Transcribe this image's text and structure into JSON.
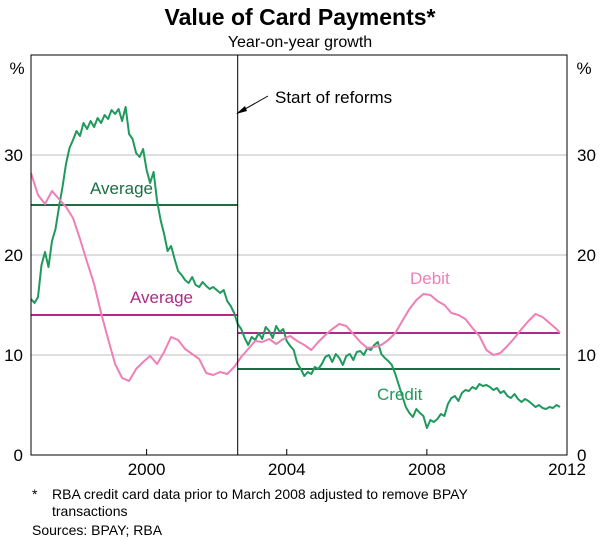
{
  "chart_data": {
    "type": "line",
    "title": "Value of Card Payments*",
    "subtitle": "Year-on-year growth",
    "y_unit_left": "%",
    "y_unit_right": "%",
    "xlim": [
      1996.7,
      2012.0
    ],
    "ylim": [
      0,
      40
    ],
    "x_ticks": [
      2000,
      2004,
      2008,
      2012
    ],
    "x_tick_labels": [
      "2000",
      "2004",
      "2008",
      "2012"
    ],
    "y_ticks": [
      0,
      10,
      20,
      30
    ],
    "y_tick_labels": [
      "0",
      "10",
      "20",
      "30"
    ],
    "grid": "horizontal",
    "colors": {
      "credit": "#1e9a5c",
      "debit": "#ef7fb7",
      "credit_average": "#1a6e44",
      "debit_average": "#b02a86",
      "grid": "#bdbdbd",
      "axis": "#000000"
    },
    "series": [
      {
        "name": "Credit",
        "color": "#1e9a5c",
        "x": [
          1996.7,
          1996.8,
          1996.9,
          1997.0,
          1997.1,
          1997.2,
          1997.3,
          1997.4,
          1997.5,
          1997.6,
          1997.7,
          1997.8,
          1997.9,
          1998.0,
          1998.1,
          1998.2,
          1998.3,
          1998.4,
          1998.5,
          1998.6,
          1998.7,
          1998.8,
          1998.9,
          1999.0,
          1999.1,
          1999.2,
          1999.3,
          1999.4,
          1999.5,
          1999.6,
          1999.7,
          1999.8,
          1999.9,
          2000.0,
          2000.1,
          2000.2,
          2000.3,
          2000.4,
          2000.5,
          2000.6,
          2000.7,
          2000.8,
          2000.9,
          2001.0,
          2001.1,
          2001.2,
          2001.3,
          2001.4,
          2001.5,
          2001.6,
          2001.7,
          2001.8,
          2001.9,
          2002.0,
          2002.1,
          2002.2,
          2002.3,
          2002.4,
          2002.5,
          2002.6,
          2002.7,
          2002.8,
          2002.9,
          2003.0,
          2003.1,
          2003.2,
          2003.3,
          2003.4,
          2003.5,
          2003.6,
          2003.7,
          2003.8,
          2003.9,
          2004.0,
          2004.1,
          2004.2,
          2004.3,
          2004.4,
          2004.5,
          2004.6,
          2004.7,
          2004.8,
          2004.9,
          2005.0,
          2005.1,
          2005.2,
          2005.3,
          2005.4,
          2005.5,
          2005.6,
          2005.7,
          2005.8,
          2005.9,
          2006.0,
          2006.1,
          2006.2,
          2006.3,
          2006.4,
          2006.5,
          2006.6,
          2006.7,
          2006.8,
          2006.9,
          2007.0,
          2007.1,
          2007.2,
          2007.3,
          2007.4,
          2007.5,
          2007.6,
          2007.7,
          2007.8,
          2007.9,
          2008.0,
          2008.1,
          2008.2,
          2008.3,
          2008.4,
          2008.5,
          2008.6,
          2008.7,
          2008.8,
          2008.9,
          2009.0,
          2009.1,
          2009.2,
          2009.3,
          2009.4,
          2009.5,
          2009.6,
          2009.7,
          2009.8,
          2009.9,
          2010.0,
          2010.1,
          2010.2,
          2010.3,
          2010.4,
          2010.5,
          2010.6,
          2010.7,
          2010.8,
          2010.9,
          2011.0,
          2011.1,
          2011.2,
          2011.3,
          2011.4,
          2011.5,
          2011.6,
          2011.7,
          2011.8
        ],
        "y": [
          15.6,
          15.2,
          15.8,
          19.0,
          20.3,
          18.8,
          21.4,
          22.6,
          24.8,
          26.8,
          29.1,
          30.7,
          31.5,
          32.4,
          31.9,
          33.2,
          32.6,
          33.4,
          32.8,
          33.7,
          33.2,
          34.0,
          33.6,
          34.5,
          34.1,
          34.6,
          33.4,
          34.8,
          32.1,
          31.6,
          30.2,
          29.8,
          30.6,
          28.5,
          27.2,
          28.3,
          25.4,
          23.5,
          22.1,
          20.4,
          20.9,
          19.6,
          18.4,
          18.0,
          17.5,
          17.2,
          17.8,
          17.0,
          16.8,
          17.3,
          16.9,
          16.6,
          16.8,
          16.5,
          16.2,
          16.5,
          15.4,
          14.9,
          14.2,
          13.1,
          12.6,
          11.7,
          11.0,
          11.8,
          11.5,
          12.2,
          11.6,
          12.8,
          12.4,
          11.7,
          12.9,
          12.3,
          12.6,
          11.4,
          10.9,
          10.5,
          9.2,
          8.6,
          7.9,
          8.3,
          8.1,
          8.8,
          8.6,
          9.1,
          9.8,
          10.0,
          9.3,
          10.1,
          9.7,
          9.0,
          9.9,
          10.1,
          9.5,
          10.3,
          10.4,
          10.0,
          10.7,
          10.5,
          11.0,
          11.3,
          10.1,
          9.7,
          9.4,
          9.0,
          8.1,
          7.0,
          5.9,
          4.8,
          4.2,
          3.8,
          4.6,
          4.2,
          3.9,
          2.7,
          3.5,
          3.3,
          3.6,
          4.1,
          3.9,
          5.1,
          5.7,
          5.9,
          5.4,
          6.2,
          6.5,
          6.4,
          6.8,
          6.6,
          7.1,
          6.9,
          7.0,
          6.8,
          6.5,
          6.7,
          6.2,
          6.4,
          5.9,
          5.7,
          6.1,
          5.6,
          5.3,
          5.6,
          5.4,
          5.1,
          4.8,
          5.0,
          4.7,
          4.6,
          4.8,
          4.7,
          5.0,
          4.8
        ],
        "y_note": "x/y arrays aligned by index"
      },
      {
        "name": "Debit",
        "color": "#ef7fb7",
        "x": [
          1996.7,
          1996.9,
          1997.1,
          1997.3,
          1997.5,
          1997.7,
          1997.9,
          1998.1,
          1998.3,
          1998.5,
          1998.7,
          1998.9,
          1999.1,
          1999.3,
          1999.5,
          1999.7,
          1999.9,
          2000.1,
          2000.3,
          2000.5,
          2000.7,
          2000.9,
          2001.1,
          2001.3,
          2001.5,
          2001.7,
          2001.9,
          2002.1,
          2002.3,
          2002.5,
          2002.7,
          2002.9,
          2003.1,
          2003.3,
          2003.5,
          2003.7,
          2003.9,
          2004.1,
          2004.3,
          2004.5,
          2004.7,
          2004.9,
          2005.1,
          2005.3,
          2005.5,
          2005.7,
          2005.9,
          2006.1,
          2006.3,
          2006.5,
          2006.7,
          2006.9,
          2007.1,
          2007.3,
          2007.5,
          2007.7,
          2007.9,
          2008.1,
          2008.3,
          2008.5,
          2008.7,
          2008.9,
          2009.1,
          2009.3,
          2009.5,
          2009.7,
          2009.9,
          2010.1,
          2010.3,
          2010.5,
          2010.7,
          2010.9,
          2011.1,
          2011.3,
          2011.5,
          2011.7,
          2011.8
        ],
        "y": [
          28.2,
          26.0,
          25.1,
          26.4,
          25.6,
          24.8,
          23.7,
          21.6,
          19.3,
          17.1,
          14.2,
          11.6,
          9.1,
          7.7,
          7.4,
          8.6,
          9.3,
          9.9,
          9.1,
          10.3,
          11.8,
          11.5,
          10.6,
          10.1,
          9.6,
          8.2,
          8.0,
          8.3,
          8.1,
          8.8,
          9.8,
          10.6,
          11.4,
          11.3,
          11.6,
          11.1,
          11.6,
          11.9,
          11.4,
          11.0,
          10.5,
          11.3,
          12.0,
          12.6,
          13.1,
          12.9,
          12.1,
          11.3,
          10.7,
          10.8,
          11.0,
          11.5,
          12.2,
          13.4,
          14.6,
          15.5,
          16.1,
          16.0,
          15.4,
          15.0,
          14.2,
          14.0,
          13.6,
          12.7,
          11.9,
          10.5,
          10.0,
          10.2,
          10.9,
          11.7,
          12.6,
          13.4,
          14.1,
          13.8,
          13.2,
          12.6,
          12.2
        ],
        "y_note": "x/y arrays aligned by index"
      }
    ],
    "averages": [
      {
        "name": "Credit average",
        "label": "Average",
        "color": "#1a6e44",
        "x": [
          1996.7,
          2002.6
        ],
        "y": 25.0
      },
      {
        "name": "Credit average",
        "color": "#1a6e44",
        "x": [
          2002.6,
          2011.8
        ],
        "y": 8.6
      },
      {
        "name": "Debit average",
        "label": "Average",
        "color": "#b02a86",
        "x": [
          1996.7,
          2002.6
        ],
        "y": 14.0
      },
      {
        "name": "Debit average",
        "color": "#b02a86",
        "x": [
          2002.6,
          2011.8
        ],
        "y": 12.2
      }
    ],
    "reform_date": 2002.6,
    "annotations": {
      "start_of_reforms": "Start of reforms",
      "credit_label": "Credit",
      "debit_label": "Debit",
      "credit_average_label": "Average",
      "debit_average_label": "Average"
    }
  },
  "footnote_marker": "*",
  "footnote_line1": "RBA credit card data prior to March 2008 adjusted to remove BPAY",
  "footnote_line2": "transactions",
  "sources": "Sources: BPAY; RBA"
}
